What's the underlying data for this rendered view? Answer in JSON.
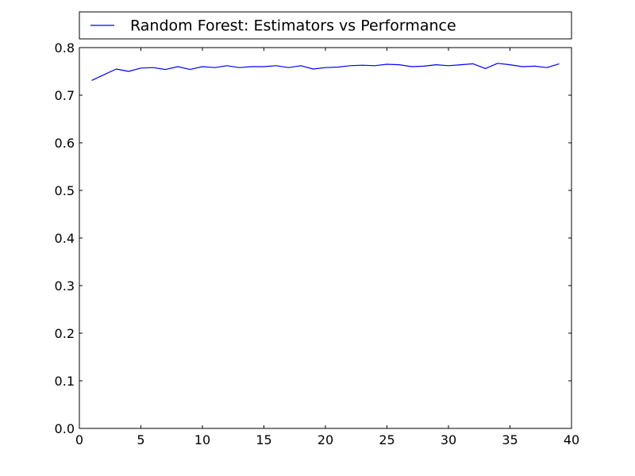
{
  "chart_data": {
    "type": "line",
    "title": "",
    "xlabel": "",
    "ylabel": "",
    "xlim": [
      0,
      40
    ],
    "ylim": [
      0.0,
      0.8
    ],
    "xticks": [
      0,
      5,
      10,
      15,
      20,
      25,
      30,
      35,
      40
    ],
    "yticks": [
      0.0,
      0.1,
      0.2,
      0.3,
      0.4,
      0.5,
      0.6,
      0.7,
      0.8
    ],
    "xtick_labels": [
      "0",
      "5",
      "10",
      "15",
      "20",
      "25",
      "30",
      "35",
      "40"
    ],
    "ytick_labels": [
      "0.0",
      "0.1",
      "0.2",
      "0.3",
      "0.4",
      "0.5",
      "0.6",
      "0.7",
      "0.8"
    ],
    "grid": false,
    "legend": {
      "placement": "top, above plot"
    },
    "series": [
      {
        "name": "Random Forest: Estimators vs Performance",
        "color": "#0000ff",
        "x": [
          1,
          2,
          3,
          4,
          5,
          6,
          7,
          8,
          9,
          10,
          11,
          12,
          13,
          14,
          15,
          16,
          17,
          18,
          19,
          20,
          21,
          22,
          23,
          24,
          25,
          26,
          27,
          28,
          29,
          30,
          31,
          32,
          33,
          34,
          35,
          36,
          37,
          38,
          39
        ],
        "y": [
          0.731,
          0.743,
          0.755,
          0.75,
          0.757,
          0.758,
          0.754,
          0.76,
          0.754,
          0.76,
          0.758,
          0.762,
          0.758,
          0.76,
          0.76,
          0.762,
          0.758,
          0.762,
          0.755,
          0.758,
          0.759,
          0.762,
          0.763,
          0.762,
          0.765,
          0.764,
          0.76,
          0.761,
          0.764,
          0.762,
          0.764,
          0.766,
          0.756,
          0.767,
          0.764,
          0.76,
          0.761,
          0.758,
          0.766
        ]
      }
    ]
  }
}
